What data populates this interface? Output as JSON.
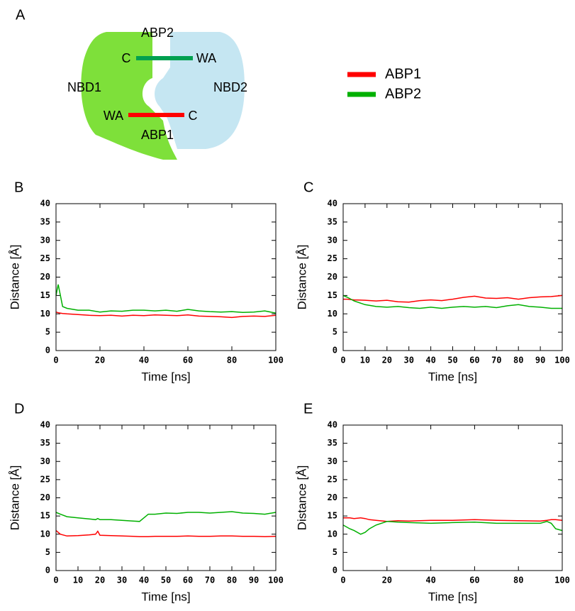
{
  "diagram": {
    "panel": "A",
    "nbd1": "NBD1",
    "nbd2": "NBD2",
    "abp1": "ABP1",
    "abp2": "ABP2",
    "top_c": "C",
    "top_wa": "WA",
    "bottom_wa": "WA",
    "bottom_c": "C"
  },
  "chart_data": [
    {
      "type": "line",
      "panel": "B",
      "xlabel": "Time [ns]",
      "ylabel": "Distance [Å]",
      "x": [
        0,
        1,
        2,
        3,
        5,
        10,
        15,
        20,
        25,
        30,
        35,
        40,
        45,
        50,
        55,
        60,
        65,
        70,
        75,
        80,
        85,
        90,
        95,
        100
      ],
      "series": [
        {
          "name": "ABP1",
          "color": "#ff0000",
          "values": [
            10.5,
            10.3,
            10.2,
            10.1,
            10,
            9.8,
            9.6,
            9.5,
            9.6,
            9.4,
            9.6,
            9.5,
            9.7,
            9.6,
            9.5,
            9.7,
            9.4,
            9.3,
            9.2,
            9,
            9.3,
            9.4,
            9.3,
            9.6
          ]
        },
        {
          "name": "ABP2",
          "color": "#00b000",
          "values": [
            15,
            18,
            15,
            12,
            11.5,
            11,
            11,
            10.5,
            10.8,
            10.7,
            11,
            11,
            10.8,
            11,
            10.7,
            11.2,
            10.8,
            10.6,
            10.5,
            10.6,
            10.4,
            10.5,
            10.8,
            10.2
          ]
        }
      ],
      "xlim": [
        0,
        100
      ],
      "xticks": [
        0,
        20,
        40,
        60,
        80,
        100
      ],
      "ylim": [
        0,
        40
      ],
      "yticks": [
        0,
        5,
        10,
        15,
        20,
        25,
        30,
        35,
        40
      ]
    },
    {
      "type": "line",
      "panel": "C",
      "xlabel": "Time [ns]",
      "ylabel": "Distance [Å]",
      "x": [
        0,
        2,
        5,
        10,
        15,
        20,
        25,
        30,
        35,
        40,
        45,
        50,
        55,
        60,
        65,
        70,
        75,
        80,
        85,
        90,
        95,
        100
      ],
      "series": [
        {
          "name": "ABP1",
          "color": "#ff0000",
          "values": [
            14,
            14,
            13.8,
            13.7,
            13.5,
            13.7,
            13.3,
            13.2,
            13.6,
            13.8,
            13.6,
            14,
            14.5,
            14.8,
            14.3,
            14.2,
            14.4,
            14,
            14.4,
            14.6,
            14.7,
            15
          ]
        },
        {
          "name": "ABP2",
          "color": "#00b000",
          "values": [
            15,
            14.5,
            13.5,
            12.5,
            12,
            11.8,
            12,
            11.7,
            11.5,
            11.8,
            11.5,
            11.8,
            12,
            11.8,
            12,
            11.7,
            12.2,
            12.5,
            12,
            11.8,
            11.5,
            11.5
          ]
        }
      ],
      "xlim": [
        0,
        100
      ],
      "xticks": [
        0,
        10,
        20,
        30,
        40,
        50,
        60,
        70,
        80,
        90,
        100
      ],
      "ylim": [
        0,
        40
      ],
      "yticks": [
        0,
        5,
        10,
        15,
        20,
        25,
        30,
        35,
        40
      ]
    },
    {
      "type": "line",
      "panel": "D",
      "xlabel": "Time [ns]",
      "ylabel": "Distance [Å]",
      "x": [
        0,
        2,
        5,
        10,
        15,
        18,
        19,
        20,
        25,
        30,
        35,
        38,
        42,
        45,
        50,
        55,
        60,
        65,
        70,
        75,
        80,
        85,
        90,
        95,
        100
      ],
      "series": [
        {
          "name": "ABP1",
          "color": "#ff0000",
          "values": [
            11,
            10,
            9.5,
            9.6,
            9.8,
            10,
            10.8,
            9.7,
            9.6,
            9.5,
            9.4,
            9.3,
            9.3,
            9.4,
            9.4,
            9.4,
            9.5,
            9.4,
            9.4,
            9.5,
            9.5,
            9.4,
            9.4,
            9.3,
            9.4
          ]
        },
        {
          "name": "ABP2",
          "color": "#00b000",
          "values": [
            16,
            15.5,
            14.8,
            14.5,
            14.2,
            14,
            14.3,
            14,
            14,
            13.8,
            13.6,
            13.5,
            15.5,
            15.5,
            15.8,
            15.7,
            16,
            16,
            15.8,
            16,
            16.2,
            15.8,
            15.7,
            15.5,
            16
          ]
        }
      ],
      "xlim": [
        0,
        100
      ],
      "xticks": [
        0,
        10,
        20,
        30,
        40,
        50,
        60,
        70,
        80,
        90,
        100
      ],
      "ylim": [
        0,
        40
      ],
      "yticks": [
        0,
        5,
        10,
        15,
        20,
        25,
        30,
        35,
        40
      ]
    },
    {
      "type": "line",
      "panel": "E",
      "xlabel": "Time [ns]",
      "ylabel": "Distance [Å]",
      "x": [
        0,
        3,
        5,
        8,
        10,
        12,
        15,
        20,
        25,
        30,
        40,
        50,
        60,
        70,
        80,
        90,
        93,
        95,
        97,
        100
      ],
      "series": [
        {
          "name": "ABP1",
          "color": "#ff0000",
          "values": [
            14.5,
            14.5,
            14.3,
            14.5,
            14.3,
            14,
            13.8,
            13.5,
            13.7,
            13.6,
            13.8,
            13.8,
            14,
            13.8,
            13.7,
            13.6,
            13.8,
            14,
            14,
            13.8
          ]
        },
        {
          "name": "ABP2",
          "color": "#00b000",
          "values": [
            12.5,
            11.5,
            11,
            10,
            10.5,
            11.5,
            12.5,
            13.5,
            13.3,
            13.2,
            13,
            13.2,
            13.3,
            13,
            13,
            13,
            13.5,
            13,
            11.5,
            11
          ]
        }
      ],
      "xlim": [
        0,
        100
      ],
      "xticks": [
        0,
        20,
        40,
        60,
        80,
        100
      ],
      "ylim": [
        0,
        40
      ],
      "yticks": [
        0,
        5,
        10,
        15,
        20,
        25,
        30,
        35,
        40
      ]
    }
  ]
}
